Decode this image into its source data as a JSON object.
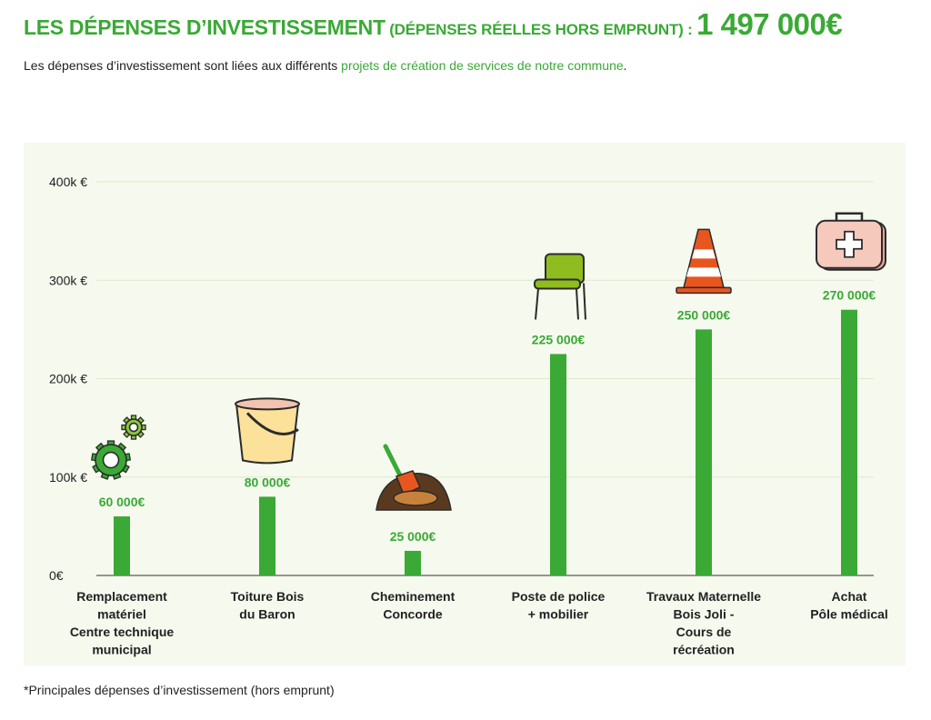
{
  "header": {
    "title_main": "LES DÉPENSES D’INVESTISSEMENT",
    "title_sub": "(DÉPENSES RÉELLES HORS EMPRUNT) :",
    "title_amount": "1 497 000€"
  },
  "intro": {
    "text_before": "Les dépenses d’investissement sont liées aux différents ",
    "link_text": "projets de création de services de notre commune",
    "text_after": "."
  },
  "footnote": "*Principales dépenses d’investissement (hors emprunt)",
  "colors": {
    "bar": "#3aa935",
    "value_label": "#3aa935",
    "panel_bg": "#f5f9ee",
    "gridline": "#dfe9cc"
  },
  "chart_data": {
    "type": "bar",
    "categories": [
      [
        "Remplacement",
        "matériel",
        "Centre technique",
        "municipal"
      ],
      [
        "Toiture Bois",
        "du Baron"
      ],
      [
        "Cheminement",
        "Concorde"
      ],
      [
        "Poste de police",
        "+ mobilier"
      ],
      [
        "Travaux Maternelle",
        "Bois Joli -",
        "Cours de",
        "récréation"
      ],
      [
        "Achat",
        "Pôle médical"
      ]
    ],
    "values": [
      60000,
      80000,
      25000,
      225000,
      250000,
      270000
    ],
    "value_labels": [
      "60 000€",
      "80 000€",
      "25 000€",
      "225 000€",
      "250 000€",
      "270 000€"
    ],
    "icons": [
      "gears-icon",
      "bucket-icon",
      "shovel-dirt-icon",
      "chair-icon",
      "traffic-cone-icon",
      "first-aid-kit-icon"
    ],
    "yticks": [
      0,
      100000,
      200000,
      300000,
      400000
    ],
    "ytick_labels": [
      "0€",
      "100k €",
      "200k €",
      "300k €",
      "400k €"
    ],
    "ylim": [
      0,
      400000
    ],
    "grid": true,
    "legend": "none"
  }
}
